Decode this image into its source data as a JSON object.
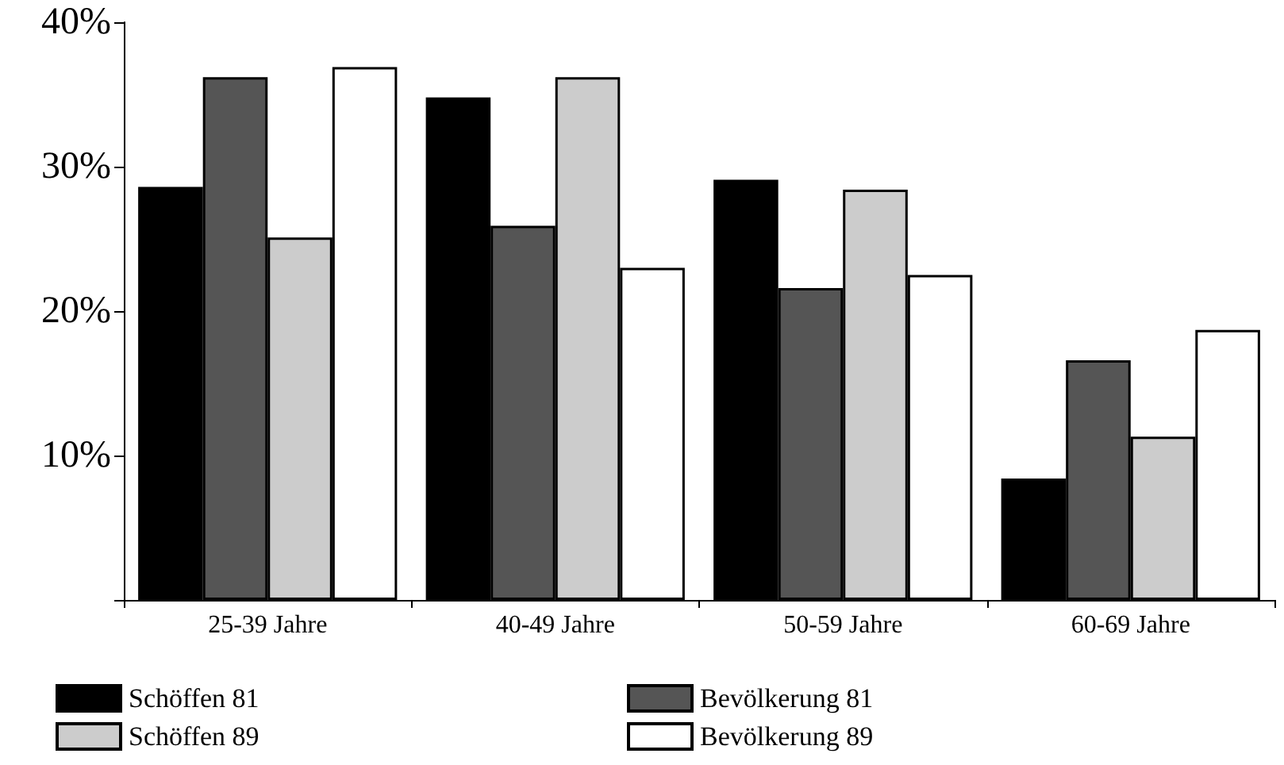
{
  "chart_data": {
    "type": "bar",
    "categories": [
      "25-39 Jahre",
      "40-49 Jahre",
      "50-59 Jahre",
      "60-69 Jahre"
    ],
    "series": [
      {
        "name": "Schöffen 81",
        "color": "#000000",
        "values": [
          28.6,
          34.8,
          29.1,
          8.4
        ]
      },
      {
        "name": "Bevölkerung 81",
        "color": "#555555",
        "values": [
          36.2,
          25.9,
          21.6,
          16.6
        ]
      },
      {
        "name": "Schöffen 89",
        "color": "#cccccc",
        "values": [
          25.1,
          36.2,
          28.4,
          11.3
        ]
      },
      {
        "name": "Bevölkerung 89",
        "color": "#ffffff",
        "values": [
          36.9,
          23.0,
          22.5,
          18.7
        ]
      }
    ],
    "ylim": [
      0,
      40
    ],
    "yticks": [
      {
        "value": 0,
        "label": null
      },
      {
        "value": 10,
        "label": "10%"
      },
      {
        "value": 20,
        "label": "20%"
      },
      {
        "value": 30,
        "label": "30%"
      },
      {
        "value": 40,
        "label": "40%"
      }
    ],
    "grid": false,
    "legend": "bottom"
  }
}
